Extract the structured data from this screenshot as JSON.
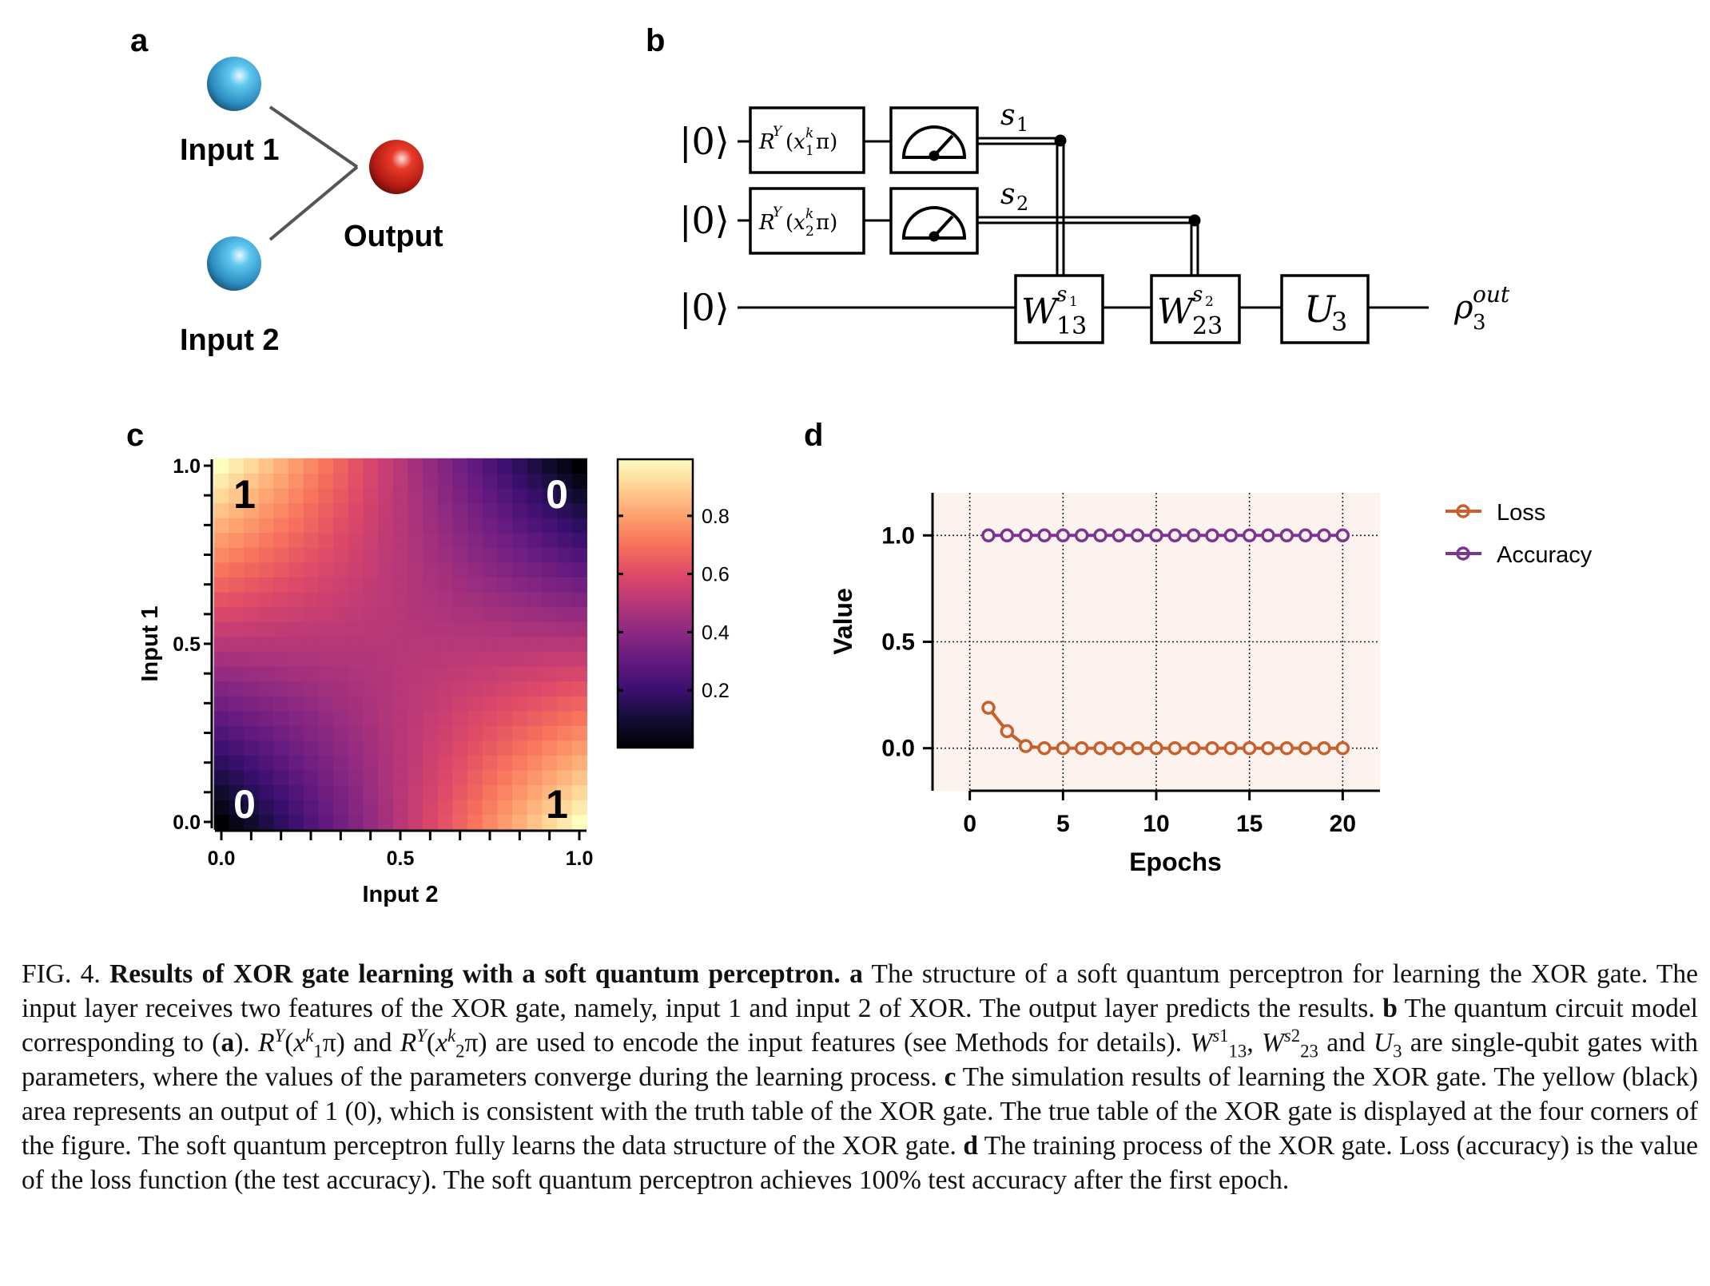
{
  "panels": {
    "a": "a",
    "b": "b",
    "c": "c",
    "d": "d"
  },
  "panel_a": {
    "input1": "Input 1",
    "input2": "Input 2",
    "output": "Output",
    "colors": {
      "input": "#3aa6d8",
      "output": "#d42a1e"
    }
  },
  "panel_b": {
    "ket": "|0⟩",
    "ry1": {
      "R": "R",
      "Y": "Y",
      "open": "(",
      "x": "x",
      "k": "k",
      "i": "1",
      "close": "π)"
    },
    "ry2": {
      "R": "R",
      "Y": "Y",
      "open": "(",
      "x": "x",
      "k": "k",
      "i": "2",
      "close": "π)"
    },
    "s1": {
      "s": "s",
      "i": "1"
    },
    "s2": {
      "s": "s",
      "i": "2"
    },
    "w13": {
      "W": "W",
      "sup": "s",
      "supsub": "1",
      "sub": "13"
    },
    "w23": {
      "W": "W",
      "sup": "s",
      "supsub": "2",
      "sub": "23"
    },
    "u3": {
      "U": "U",
      "sub": "3"
    },
    "rho": {
      "rho": "ρ",
      "sub": "3",
      "sup": "out"
    }
  },
  "chart_data": [
    {
      "type": "heatmap",
      "xlabel": "Input 2",
      "ylabel": "Input 1",
      "x_ticks": [
        "0.0",
        "0.5",
        "1.0"
      ],
      "y_ticks": [
        "0.0",
        "0.5",
        "1.0"
      ],
      "xlim": [
        0,
        1
      ],
      "ylim": [
        0,
        1
      ],
      "colormap": "magma",
      "colorbar": {
        "range": [
          0,
          1
        ],
        "ticks": [
          "0.2",
          "0.4",
          "0.6",
          "0.8"
        ]
      },
      "corner_labels": {
        "top_left": "1",
        "top_right": "0",
        "bottom_left": "0",
        "bottom_right": "1"
      },
      "grid_x": [
        0,
        0.1,
        0.2,
        0.3,
        0.4,
        0.5,
        0.6,
        0.7,
        0.8,
        0.9,
        1.0
      ],
      "grid_y": [
        0,
        0.1,
        0.2,
        0.3,
        0.4,
        0.5,
        0.6,
        0.7,
        0.8,
        0.9,
        1.0
      ],
      "z": [
        [
          0,
          0.1,
          0.2,
          0.3,
          0.4,
          0.5,
          0.6,
          0.7,
          0.8,
          0.9,
          1.0
        ],
        [
          0.1,
          0.18,
          0.26,
          0.34,
          0.42,
          0.5,
          0.58,
          0.66,
          0.74,
          0.82,
          0.9
        ],
        [
          0.2,
          0.26,
          0.32,
          0.38,
          0.44,
          0.5,
          0.56,
          0.62,
          0.68,
          0.74,
          0.8
        ],
        [
          0.3,
          0.34,
          0.38,
          0.42,
          0.46,
          0.5,
          0.54,
          0.58,
          0.62,
          0.66,
          0.7
        ],
        [
          0.4,
          0.42,
          0.44,
          0.46,
          0.48,
          0.5,
          0.52,
          0.54,
          0.56,
          0.58,
          0.6
        ],
        [
          0.5,
          0.5,
          0.5,
          0.5,
          0.5,
          0.5,
          0.5,
          0.5,
          0.5,
          0.5,
          0.5
        ],
        [
          0.6,
          0.58,
          0.56,
          0.54,
          0.52,
          0.5,
          0.48,
          0.46,
          0.44,
          0.42,
          0.4
        ],
        [
          0.7,
          0.66,
          0.62,
          0.58,
          0.54,
          0.5,
          0.46,
          0.42,
          0.38,
          0.34,
          0.3
        ],
        [
          0.8,
          0.74,
          0.68,
          0.62,
          0.56,
          0.5,
          0.44,
          0.38,
          0.32,
          0.26,
          0.2
        ],
        [
          0.9,
          0.82,
          0.74,
          0.66,
          0.58,
          0.5,
          0.42,
          0.34,
          0.26,
          0.18,
          0.1
        ],
        [
          1.0,
          0.9,
          0.8,
          0.7,
          0.6,
          0.5,
          0.4,
          0.3,
          0.2,
          0.1,
          0
        ]
      ]
    },
    {
      "type": "line",
      "xlabel": "Epochs",
      "ylabel": "Value",
      "xlim": [
        -2,
        22
      ],
      "ylim": [
        -0.2,
        1.2
      ],
      "x_ticks": [
        "0",
        "5",
        "10",
        "15",
        "20"
      ],
      "y_ticks": [
        "0.0",
        "0.5",
        "1.0"
      ],
      "grid": true,
      "legend": "top-right-outside",
      "background": "#fcf3ee",
      "x": [
        1,
        2,
        3,
        4,
        5,
        6,
        7,
        8,
        9,
        10,
        11,
        12,
        13,
        14,
        15,
        16,
        17,
        18,
        19,
        20
      ],
      "series": [
        {
          "name": "Loss",
          "color": "#c8602e",
          "values": [
            0.19,
            0.08,
            0.01,
            0,
            0,
            0,
            0,
            0,
            0,
            0,
            0,
            0,
            0,
            0,
            0,
            0,
            0,
            0,
            0,
            0
          ]
        },
        {
          "name": "Accuracy",
          "color": "#7b3590",
          "values": [
            1,
            1,
            1,
            1,
            1,
            1,
            1,
            1,
            1,
            1,
            1,
            1,
            1,
            1,
            1,
            1,
            1,
            1,
            1,
            1
          ]
        }
      ]
    }
  ],
  "caption": {
    "fig": "FIG. 4.",
    "title": "Results of XOR gate learning with a soft quantum perceptron.",
    "a": "a",
    "t1": " The structure of a soft quantum perceptron for learning the XOR gate. The input layer receives two features of the XOR gate, namely, input 1 and input 2 of XOR. The output layer predicts the results. ",
    "b": "b",
    "t2": " The quantum circuit model corresponding to (",
    "a2": "a",
    "t3": "). ",
    "and1": " and ",
    "t4": " are used to encode the input features (see Methods for details). ",
    "comma": ", ",
    "and2": " and ",
    "t5": " are single-qubit gates with parameters, where the values of the parameters converge during the learning process. ",
    "c": "c",
    "t6": " The simulation results of learning the XOR gate. The yellow (black) area represents an output of 1 (0), which is consistent with the truth table of the XOR gate. The true table of the XOR gate is displayed at the four corners of the figure. The soft quantum perceptron fully learns the data structure of the XOR gate. ",
    "d": "d",
    "t7": " The training process of the XOR gate. Loss (accuracy) is the value of the loss function (the test accuracy). The soft quantum perceptron achieves 100% test accuracy after the first epoch."
  }
}
